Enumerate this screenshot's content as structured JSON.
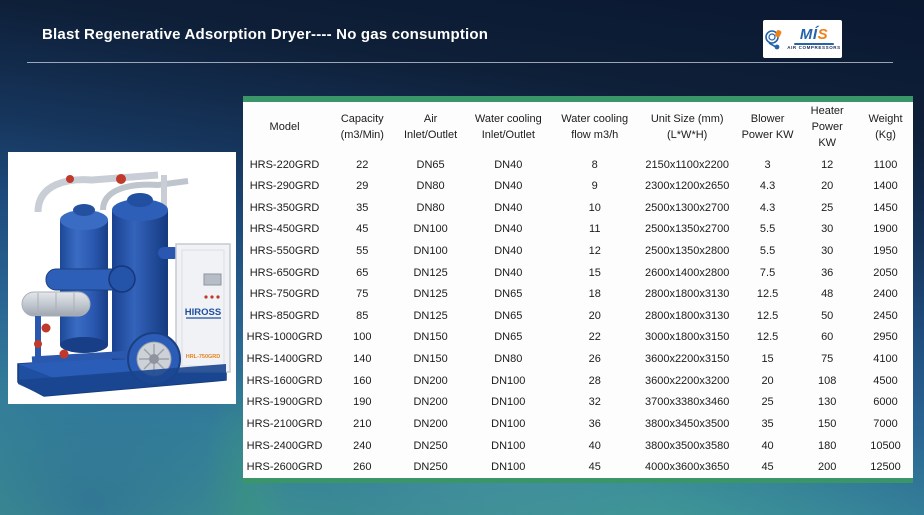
{
  "slide": {
    "title": "Blast Regenerative Adsorption Dryer---- No gas consumption"
  },
  "logo": {
    "letter_m": "M",
    "letter_i": "Í",
    "letter_s": "S",
    "subtitle": "AIR COMPRESSORS"
  },
  "equipment": {
    "brand_label": "HIROSS",
    "model_label": "HRL-750GRD"
  },
  "table": {
    "columns": [
      "Model",
      "Capacity\n(m3/Min)",
      "Air\nInlet/Outlet",
      "Water cooling\nInlet/Outlet",
      "Water cooling\nflow m3/h",
      "Unit Size (mm)\n(L*W*H)",
      "Blower\nPower  KW",
      "Heater\nPower\nKW",
      "Weight\n(Kg)"
    ],
    "rows": [
      [
        "HRS-220GRD",
        "22",
        "DN65",
        "DN40",
        "8",
        "2150x1100x2200",
        "3",
        "12",
        "1100"
      ],
      [
        "HRS-290GRD",
        "29",
        "DN80",
        "DN40",
        "9",
        "2300x1200x2650",
        "4.3",
        "20",
        "1400"
      ],
      [
        "HRS-350GRD",
        "35",
        "DN80",
        "DN40",
        "10",
        "2500x1300x2700",
        "4.3",
        "25",
        "1450"
      ],
      [
        "HRS-450GRD",
        "45",
        "DN100",
        "DN40",
        "11",
        "2500x1350x2700",
        "5.5",
        "30",
        "1900"
      ],
      [
        "HRS-550GRD",
        "55",
        "DN100",
        "DN40",
        "12",
        "2500x1350x2800",
        "5.5",
        "30",
        "1950"
      ],
      [
        "HRS-650GRD",
        "65",
        "DN125",
        "DN40",
        "15",
        "2600x1400x2800",
        "7.5",
        "36",
        "2050"
      ],
      [
        "HRS-750GRD",
        "75",
        "DN125",
        "DN65",
        "18",
        "2800x1800x3130",
        "12.5",
        "48",
        "2400"
      ],
      [
        "HRS-850GRD",
        "85",
        "DN125",
        "DN65",
        "20",
        "2800x1800x3130",
        "12.5",
        "50",
        "2450"
      ],
      [
        "HRS-1000GRD",
        "100",
        "DN150",
        "DN65",
        "22",
        "3000x1800x3150",
        "12.5",
        "60",
        "2950"
      ],
      [
        "HRS-1400GRD",
        "140",
        "DN150",
        "DN80",
        "26",
        "3600x2200x3150",
        "15",
        "75",
        "4100"
      ],
      [
        "HRS-1600GRD",
        "160",
        "DN200",
        "DN100",
        "28",
        "3600x2200x3200",
        "20",
        "108",
        "4500"
      ],
      [
        "HRS-1900GRD",
        "190",
        "DN200",
        "DN100",
        "32",
        "3700x3380x3460",
        "25",
        "130",
        "6000"
      ],
      [
        "HRS-2100GRD",
        "210",
        "DN200",
        "DN100",
        "36",
        "3800x3450x3500",
        "35",
        "150",
        "7000"
      ],
      [
        "HRS-2400GRD",
        "240",
        "DN250",
        "DN100",
        "40",
        "3800x3500x3580",
        "40",
        "180",
        "10500"
      ],
      [
        "HRS-2600GRD",
        "260",
        "DN250",
        "DN100",
        "45",
        "4000x3600x3650",
        "45",
        "200",
        "12500"
      ]
    ]
  },
  "colors": {
    "accent_green": "#3a9668",
    "logo_blue": "#2563ab",
    "logo_orange": "#f08118",
    "logo_navy": "#1b2a55",
    "title_color": "#ffffff"
  }
}
